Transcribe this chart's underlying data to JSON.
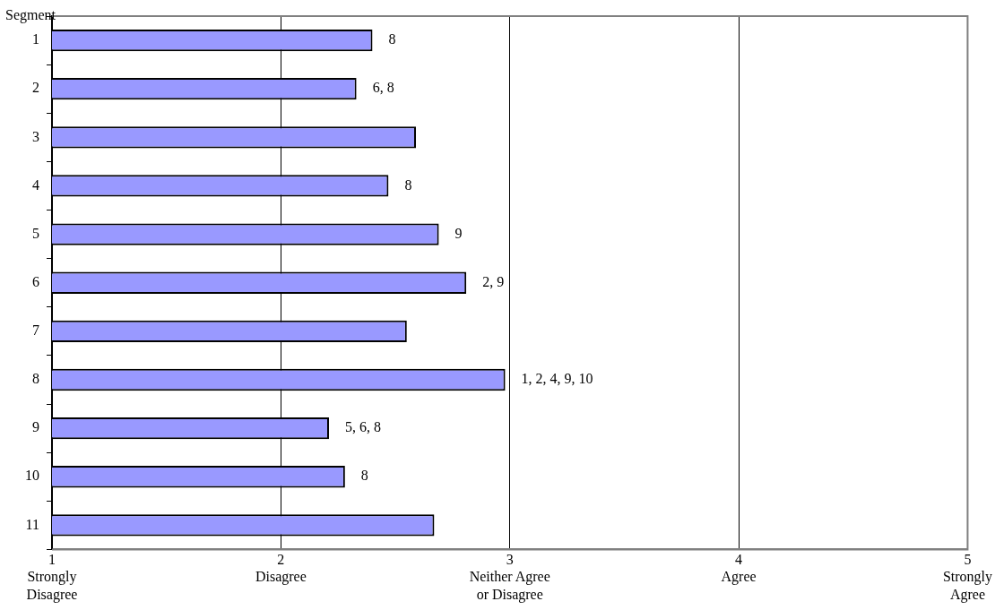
{
  "chart_data": {
    "type": "bar",
    "orientation": "horizontal",
    "ylabel": "Segment",
    "categories": [
      "1",
      "2",
      "3",
      "4",
      "5",
      "6",
      "7",
      "8",
      "9",
      "10",
      "11"
    ],
    "values": [
      2.4,
      2.33,
      2.59,
      2.47,
      2.69,
      2.81,
      2.55,
      2.98,
      2.21,
      2.28,
      2.67
    ],
    "color": "#9999ff",
    "xlim": [
      1,
      5
    ],
    "xticks": [
      {
        "value": 1,
        "label": "1\nStrongly\nDisagree"
      },
      {
        "value": 2,
        "label": "2\nDisagree"
      },
      {
        "value": 3,
        "label": "3\nNeither Agree\nor Disagree"
      },
      {
        "value": 4,
        "label": "4\nAgree"
      },
      {
        "value": 5,
        "label": "5\nStrongly\nAgree"
      }
    ],
    "grid": "x",
    "legend": false,
    "annotations": [
      {
        "text": "8",
        "x": 2.4,
        "y": "1"
      },
      {
        "text": "6, 8",
        "x": 2.33,
        "y": "2"
      },
      {
        "text": "8",
        "x": 2.47,
        "y": "4"
      },
      {
        "text": "9",
        "x": 2.69,
        "y": "5"
      },
      {
        "text": "2, 9",
        "x": 2.81,
        "y": "6"
      },
      {
        "text": "1, 2, 4, 9, 10",
        "x": 2.98,
        "y": "8"
      },
      {
        "text": "5, 6, 8",
        "x": 2.21,
        "y": "9"
      },
      {
        "text": "8",
        "x": 2.28,
        "y": "10"
      }
    ]
  }
}
